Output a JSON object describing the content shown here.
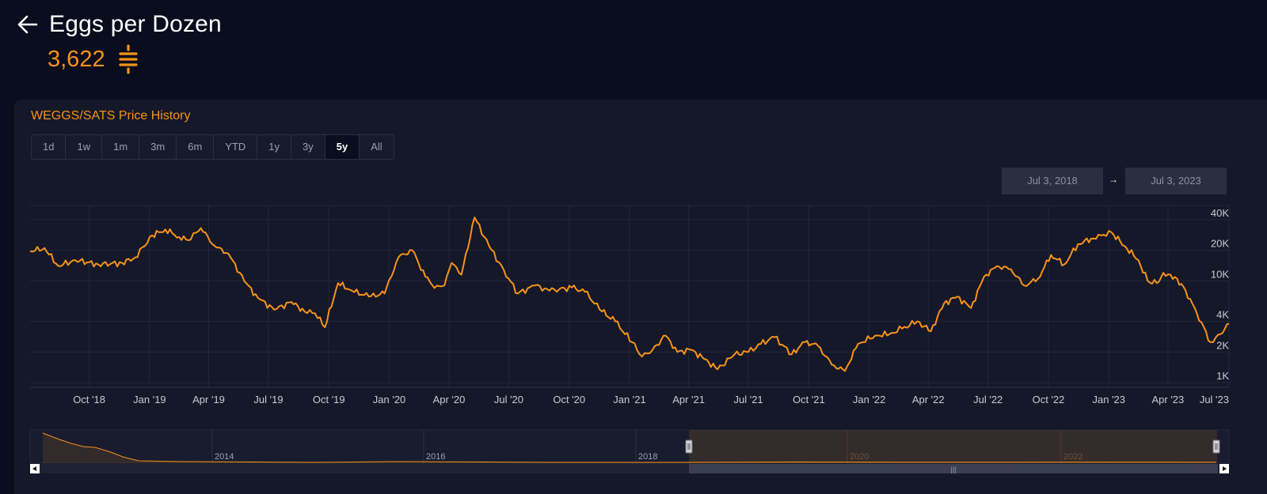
{
  "header": {
    "title": "Eggs per Dozen",
    "price": "3,622"
  },
  "colors": {
    "accent": "#f7931a",
    "background": "#0a0d1d",
    "card": "#141829"
  },
  "icons": {
    "back": "arrow-left-icon",
    "sats": "sats-icon"
  },
  "chart_card": {
    "title": "WEGGS/SATS Price History",
    "ranges": [
      "1d",
      "1w",
      "1m",
      "3m",
      "6m",
      "YTD",
      "1y",
      "3y",
      "5y",
      "All"
    ],
    "active_range": "5y",
    "date_from": "Jul 3, 2018",
    "date_to": "Jul 3, 2023",
    "date_separator": "→"
  },
  "chart_data": {
    "type": "line",
    "title": "",
    "y_scale": "log",
    "ylim": [
      900,
      55000
    ],
    "y_ticks": [
      "1K",
      "2K",
      "4K",
      "10K",
      "20K",
      "40K"
    ],
    "x_ticks": [
      "Oct '18",
      "Jan '19",
      "Apr '19",
      "Jul '19",
      "Oct '19",
      "Jan '20",
      "Apr '20",
      "Jul '20",
      "Oct '20",
      "Jan '21",
      "Apr '21",
      "Jul '21",
      "Oct '21",
      "Jan '22",
      "Apr '22",
      "Jul '22",
      "Oct '22",
      "Jan '23",
      "Apr '23",
      "Jul '23"
    ],
    "series": [
      {
        "color": "#f7931a",
        "x": [
          "2018-07-03",
          "2018-07-25",
          "2018-08-15",
          "2018-09-10",
          "2018-10-15",
          "2018-11-20",
          "2018-12-10",
          "2019-01-05",
          "2019-01-25",
          "2019-02-15",
          "2019-03-01",
          "2019-03-20",
          "2019-04-10",
          "2019-05-01",
          "2019-05-25",
          "2019-06-15",
          "2019-07-10",
          "2019-08-05",
          "2019-08-25",
          "2019-09-10",
          "2019-09-25",
          "2019-10-15",
          "2019-11-05",
          "2019-12-01",
          "2019-12-25",
          "2020-01-15",
          "2020-02-05",
          "2020-02-25",
          "2020-03-10",
          "2020-03-25",
          "2020-04-05",
          "2020-04-20",
          "2020-05-10",
          "2020-06-01",
          "2020-07-01",
          "2020-07-15",
          "2020-08-10",
          "2020-09-01",
          "2020-10-05",
          "2020-10-25",
          "2020-11-20",
          "2020-12-10",
          "2021-01-05",
          "2021-01-20",
          "2021-02-05",
          "2021-02-25",
          "2021-03-15",
          "2021-04-05",
          "2021-04-25",
          "2021-05-15",
          "2021-06-10",
          "2021-07-01",
          "2021-07-20",
          "2021-08-10",
          "2021-09-05",
          "2021-09-25",
          "2021-10-15",
          "2021-11-05",
          "2021-11-25",
          "2021-12-15",
          "2022-01-10",
          "2022-02-01",
          "2022-02-20",
          "2022-03-15",
          "2022-04-05",
          "2022-04-25",
          "2022-05-15",
          "2022-06-05",
          "2022-06-25",
          "2022-07-15",
          "2022-08-05",
          "2022-08-25",
          "2022-09-15",
          "2022-10-05",
          "2022-10-25",
          "2022-11-15",
          "2022-12-05",
          "2022-12-20",
          "2023-01-05",
          "2023-01-25",
          "2023-02-15",
          "2023-03-01",
          "2023-03-15",
          "2023-03-25",
          "2023-04-05",
          "2023-04-15",
          "2023-04-28",
          "2023-05-15",
          "2023-06-05",
          "2023-06-20",
          "2023-07-03"
        ],
        "y": [
          19500,
          21000,
          14000,
          16000,
          14500,
          15000,
          17000,
          28000,
          32000,
          27000,
          25000,
          33000,
          22000,
          18500,
          10000,
          6800,
          5200,
          6200,
          5000,
          4800,
          3500,
          9500,
          8000,
          7000,
          7500,
          17000,
          20000,
          11000,
          8500,
          9000,
          15000,
          11500,
          42000,
          22000,
          10500,
          7500,
          9000,
          8000,
          8600,
          7800,
          5000,
          4000,
          2500,
          1800,
          2100,
          2900,
          2000,
          2100,
          1700,
          1350,
          1900,
          2000,
          2400,
          2800,
          1900,
          2500,
          2300,
          1500,
          1300,
          2400,
          2900,
          3000,
          3400,
          4000,
          3200,
          6000,
          7000,
          5400,
          11000,
          14000,
          13000,
          9000,
          10500,
          18000,
          14500,
          23000,
          26000,
          28000,
          30000,
          22000,
          16000,
          10000,
          9500,
          12000,
          11500,
          10500,
          8000,
          4800,
          2500,
          3000,
          3800
        ]
      }
    ],
    "navigator": {
      "labels": [
        "2014",
        "2016",
        "2018",
        "2020",
        "2022"
      ],
      "selection": [
        "2018-07-03",
        "2023-07-03"
      ]
    }
  }
}
